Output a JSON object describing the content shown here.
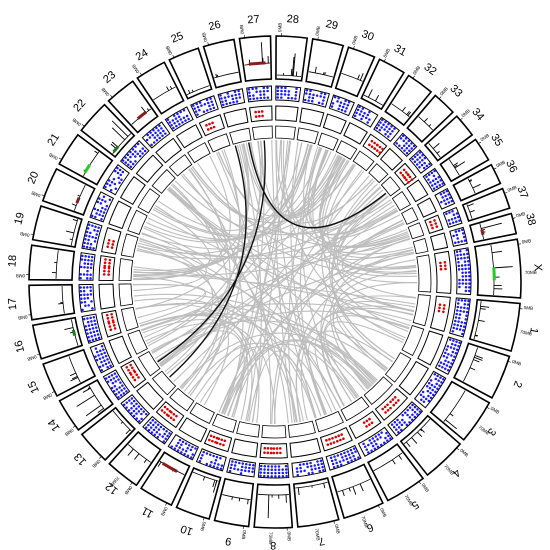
{
  "chromosomes": [
    {
      "label": "1",
      "tick_start": "0MB",
      "tick_end": "70MB"
    },
    {
      "label": "2",
      "tick_start": "0MB",
      "tick_end": ""
    },
    {
      "label": "3",
      "tick_start": "0MB",
      "tick_end": "70MB"
    },
    {
      "label": "4",
      "tick_start": "0MB",
      "tick_end": "70MB"
    },
    {
      "label": "5",
      "tick_start": "0MB",
      "tick_end": "70MB"
    },
    {
      "label": "6",
      "tick_start": "0MB",
      "tick_end": "70MB"
    },
    {
      "label": "7",
      "tick_start": "0MB",
      "tick_end": "70MB"
    },
    {
      "label": "8",
      "tick_start": "0MB",
      "tick_end": "70MB"
    },
    {
      "label": "9",
      "tick_start": "0MB",
      "tick_end": ""
    },
    {
      "label": "10",
      "tick_start": "0MB",
      "tick_end": ""
    },
    {
      "label": "11",
      "tick_start": "0MB",
      "tick_end": ""
    },
    {
      "label": "12",
      "tick_start": "0MB",
      "tick_end": "70MB"
    },
    {
      "label": "13",
      "tick_start": "0MB",
      "tick_end": ""
    },
    {
      "label": "14",
      "tick_start": "0MB",
      "tick_end": ""
    },
    {
      "label": "15",
      "tick_start": "0MB",
      "tick_end": ""
    },
    {
      "label": "16",
      "tick_start": "0MB",
      "tick_end": ""
    },
    {
      "label": "17",
      "tick_start": "0MB",
      "tick_end": ""
    },
    {
      "label": "18",
      "tick_start": "0MB",
      "tick_end": ""
    },
    {
      "label": "19",
      "tick_start": "0MB",
      "tick_end": ""
    },
    {
      "label": "20",
      "tick_start": "0MB",
      "tick_end": ""
    },
    {
      "label": "21",
      "tick_start": "0MB",
      "tick_end": ""
    },
    {
      "label": "22",
      "tick_start": "0MB",
      "tick_end": ""
    },
    {
      "label": "23",
      "tick_start": "0MB",
      "tick_end": ""
    },
    {
      "label": "24",
      "tick_start": "0MB",
      "tick_end": ""
    },
    {
      "label": "25",
      "tick_start": "0MB",
      "tick_end": ""
    },
    {
      "label": "26",
      "tick_start": "0MB",
      "tick_end": ""
    },
    {
      "label": "27",
      "tick_start": "0MB",
      "tick_end": ""
    },
    {
      "label": "28",
      "tick_start": "0MB",
      "tick_end": ""
    },
    {
      "label": "29",
      "tick_start": "0MB",
      "tick_end": ""
    },
    {
      "label": "30",
      "tick_start": "0MB",
      "tick_end": ""
    },
    {
      "label": "31",
      "tick_start": "0MB",
      "tick_end": ""
    },
    {
      "label": "32",
      "tick_start": "0MB",
      "tick_end": ""
    },
    {
      "label": "33",
      "tick_start": "0MB",
      "tick_end": ""
    },
    {
      "label": "34",
      "tick_start": "0MB",
      "tick_end": ""
    },
    {
      "label": "35",
      "tick_start": "0MB",
      "tick_end": ""
    },
    {
      "label": "36",
      "tick_start": "0MB",
      "tick_end": ""
    },
    {
      "label": "37",
      "tick_start": "0MB",
      "tick_end": ""
    },
    {
      "label": "38",
      "tick_start": "0MB",
      "tick_end": ""
    },
    {
      "label": "X",
      "tick_start": "0MB",
      "tick_end": "70MB"
    }
  ],
  "colors": {
    "track_line": "#000000",
    "highlight_red": "#8b1a1a",
    "highlight_green": "#1f7a1f",
    "bright_green": "#22cc22",
    "density_blue": "#1a1aff",
    "marker_red": "#e00000",
    "link_gray": "#bdbdbd",
    "link_black": "#111111"
  }
}
